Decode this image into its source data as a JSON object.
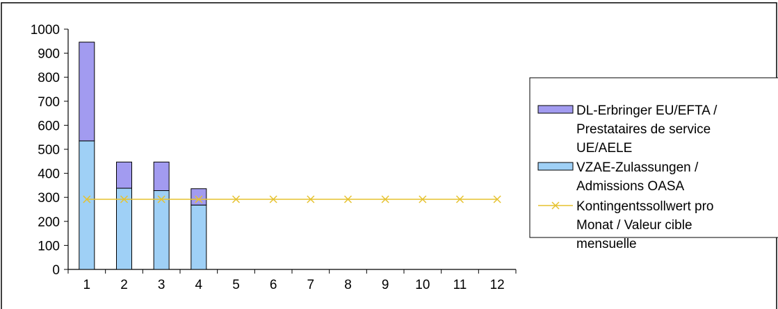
{
  "chart_data": {
    "type": "bar",
    "stacked": true,
    "categories": [
      "1",
      "2",
      "3",
      "4",
      "5",
      "6",
      "7",
      "8",
      "9",
      "10",
      "11",
      "12"
    ],
    "ylim": [
      0,
      1000
    ],
    "yticks": [
      0,
      100,
      200,
      300,
      400,
      500,
      600,
      700,
      800,
      900,
      1000
    ],
    "grid": false,
    "legend_position": "right",
    "series": [
      {
        "name": "VZAE-Zulassungen / Admissions OASA",
        "legend_lines": [
          "VZAE-Zulassungen /",
          "Admissions OASA"
        ],
        "kind": "bar",
        "color": "#9fd0f6",
        "values": [
          535,
          338,
          328,
          268,
          null,
          null,
          null,
          null,
          null,
          null,
          null,
          null
        ]
      },
      {
        "name": "DL-Erbringer EU/EFTA / Prestataires de service UE/AELE",
        "legend_lines": [
          "DL-Erbringer EU/EFTA /",
          "Prestataires de service",
          "UE/AELE"
        ],
        "kind": "bar",
        "color": "#a29bf0",
        "values": [
          411,
          109,
          119,
          68,
          null,
          null,
          null,
          null,
          null,
          null,
          null,
          null
        ]
      },
      {
        "name": "Kontingentssollwert pro Monat / Valeur cible mensuelle",
        "legend_lines": [
          "Kontingentssollwert pro",
          "Monat / Valeur cible",
          "mensuelle"
        ],
        "kind": "line",
        "marker": "x",
        "color": "#e6c22e",
        "values": [
          292,
          292,
          292,
          292,
          292,
          292,
          292,
          292,
          292,
          292,
          292,
          292
        ]
      }
    ]
  }
}
